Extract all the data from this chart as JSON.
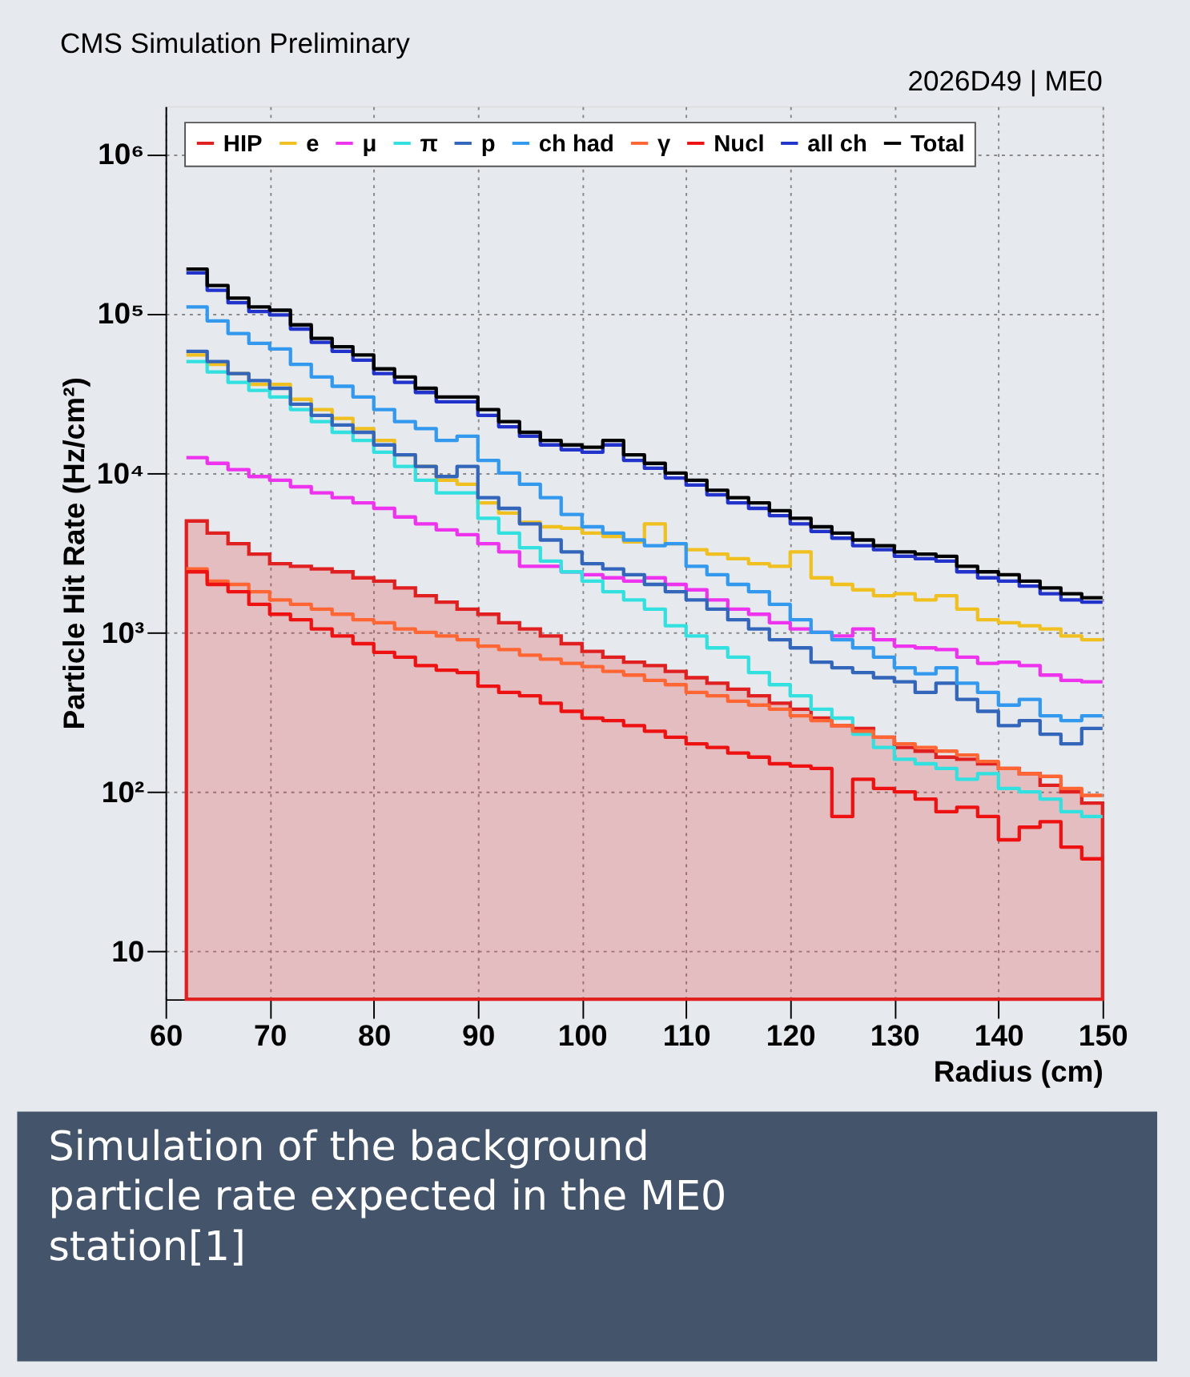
{
  "chart_data": {
    "type": "step",
    "title": "CMS Simulation Preliminary",
    "subtitle": "2026D49 | ME0",
    "xlabel": "Radius (cm)",
    "ylabel": "Particle Hit Rate (Hz/cm²)",
    "log": true,
    "grid": true,
    "legend": "top",
    "line_style": "solid",
    "marker": "none",
    "xlim": [
      60,
      150
    ],
    "xticks": [
      60,
      70,
      80,
      90,
      100,
      110,
      120,
      130,
      140,
      150
    ],
    "ylim": [
      5,
      2000000
    ],
    "yticks": [
      10,
      {
        "value": 100,
        "label": "10²"
      },
      {
        "value": 1000,
        "label": "10³"
      },
      {
        "value": 10000,
        "label": "10⁴"
      },
      {
        "value": 100000,
        "label": "10⁵"
      },
      {
        "value": 1000000,
        "label": "10⁶"
      }
    ],
    "annotations": [
      "Simulation of the background particle rate expected in the ME0 station[1]"
    ],
    "x": [
      62,
      64,
      66,
      68,
      70,
      72,
      74,
      76,
      78,
      80,
      82,
      84,
      86,
      88,
      90,
      92,
      94,
      96,
      98,
      100,
      102,
      104,
      106,
      108,
      110,
      112,
      114,
      116,
      118,
      120,
      122,
      124,
      126,
      128,
      130,
      132,
      134,
      136,
      138,
      140,
      142,
      144,
      146,
      148,
      150
    ],
    "series": [
      {
        "name": "HIP",
        "type": "area",
        "color": "#e02020",
        "values": [
          5000,
          4200,
          3600,
          3100,
          2700,
          2600,
          2500,
          2400,
          2200,
          2100,
          1900,
          1700,
          1550,
          1400,
          1300,
          1150,
          1050,
          950,
          850,
          760,
          700,
          650,
          620,
          570,
          520,
          480,
          440,
          400,
          360,
          330,
          290,
          260,
          250,
          220,
          190,
          180,
          165,
          160,
          150,
          140,
          130,
          110,
          100,
          85,
          85
        ]
      },
      {
        "name": "e",
        "color": "#f0c020",
        "values": [
          55000,
          48000,
          42000,
          36000,
          36000,
          29000,
          25000,
          22000,
          19000,
          16000,
          13000,
          11000,
          9000,
          8500,
          6500,
          5600,
          4900,
          4600,
          4500,
          4200,
          4000,
          3700,
          4800,
          3600,
          3300,
          3100,
          2900,
          2700,
          2600,
          3200,
          2200,
          2000,
          1850,
          1700,
          1750,
          1600,
          1700,
          1400,
          1200,
          1150,
          1100,
          1050,
          950,
          900,
          900
        ]
      },
      {
        "name": "μ",
        "color": "#ee33ee",
        "values": [
          12500,
          11500,
          10500,
          9500,
          9000,
          8200,
          7500,
          7000,
          6500,
          6000,
          5300,
          4800,
          4400,
          4100,
          3600,
          3200,
          2600,
          2600,
          2400,
          2300,
          2200,
          2100,
          2200,
          2000,
          1850,
          1600,
          1400,
          1300,
          1150,
          1050,
          1000,
          950,
          1050,
          900,
          820,
          800,
          780,
          700,
          640,
          650,
          620,
          540,
          500,
          490,
          490
        ]
      },
      {
        "name": "π",
        "color": "#33e0e0",
        "values": [
          50000,
          43000,
          37000,
          33000,
          30000,
          25000,
          21000,
          18000,
          16000,
          13500,
          11000,
          9000,
          7500,
          7500,
          5200,
          4200,
          3400,
          2800,
          2400,
          2100,
          1800,
          1600,
          1400,
          1100,
          950,
          800,
          700,
          560,
          470,
          400,
          330,
          290,
          230,
          190,
          160,
          150,
          140,
          120,
          130,
          105,
          100,
          90,
          75,
          70,
          70
        ]
      },
      {
        "name": "p",
        "color": "#3366bb",
        "values": [
          58000,
          50000,
          42000,
          38000,
          34000,
          27000,
          23000,
          20000,
          18000,
          15000,
          13000,
          11000,
          9500,
          11000,
          7000,
          6000,
          4800,
          3800,
          3200,
          2700,
          2500,
          2300,
          2000,
          1800,
          1600,
          1400,
          1200,
          1050,
          900,
          800,
          650,
          600,
          560,
          520,
          490,
          420,
          480,
          380,
          320,
          260,
          280,
          230,
          200,
          250,
          250
        ]
      },
      {
        "name": "ch had",
        "color": "#3399ee",
        "values": [
          110000,
          90000,
          75000,
          65000,
          60000,
          48000,
          40000,
          35000,
          30000,
          25000,
          21000,
          19000,
          16000,
          17000,
          12000,
          10000,
          8500,
          7000,
          5500,
          4600,
          4200,
          3800,
          3500,
          3600,
          2600,
          2300,
          2000,
          1800,
          1500,
          1200,
          1000,
          900,
          800,
          700,
          600,
          550,
          600,
          480,
          420,
          350,
          380,
          300,
          280,
          300,
          300
        ]
      },
      {
        "name": "γ",
        "color": "#ff6633",
        "values": [
          2500,
          2100,
          2000,
          1800,
          1600,
          1500,
          1400,
          1300,
          1200,
          1150,
          1050,
          1000,
          950,
          900,
          820,
          780,
          720,
          680,
          640,
          610,
          570,
          540,
          500,
          470,
          420,
          400,
          370,
          350,
          330,
          300,
          280,
          260,
          240,
          220,
          200,
          190,
          180,
          170,
          155,
          140,
          130,
          125,
          105,
          95,
          95
        ]
      },
      {
        "name": "Nucl",
        "color": "#ee1111",
        "values": [
          2400,
          2000,
          1800,
          1500,
          1300,
          1200,
          1050,
          950,
          850,
          750,
          700,
          620,
          580,
          560,
          460,
          420,
          400,
          360,
          320,
          290,
          280,
          260,
          240,
          220,
          200,
          190,
          175,
          165,
          150,
          145,
          140,
          70,
          120,
          105,
          100,
          90,
          75,
          80,
          70,
          50,
          60,
          65,
          45,
          38,
          38
        ]
      },
      {
        "name": "all ch",
        "color": "#2233cc",
        "values": [
          180000,
          140000,
          117000,
          103000,
          98000,
          80000,
          66000,
          58000,
          51000,
          42000,
          37000,
          32000,
          28000,
          28000,
          23000,
          19500,
          17000,
          15000,
          14000,
          13500,
          15000,
          12000,
          10700,
          9300,
          8400,
          7300,
          6500,
          6000,
          5400,
          4800,
          4300,
          3900,
          3500,
          3300,
          3000,
          2900,
          2800,
          2400,
          2200,
          2100,
          1950,
          1750,
          1600,
          1550,
          1550
        ]
      },
      {
        "name": "Total",
        "color": "#000000",
        "values": [
          190000,
          150000,
          125000,
          110000,
          105000,
          85000,
          70000,
          62000,
          55000,
          45000,
          40000,
          34000,
          30000,
          30000,
          25000,
          21000,
          18000,
          16000,
          15000,
          14500,
          16000,
          13000,
          11500,
          10000,
          9000,
          7800,
          7000,
          6500,
          5800,
          5200,
          4600,
          4200,
          3800,
          3500,
          3200,
          3100,
          3000,
          2600,
          2400,
          2300,
          2100,
          1900,
          1750,
          1650,
          1650
        ]
      }
    ]
  }
}
